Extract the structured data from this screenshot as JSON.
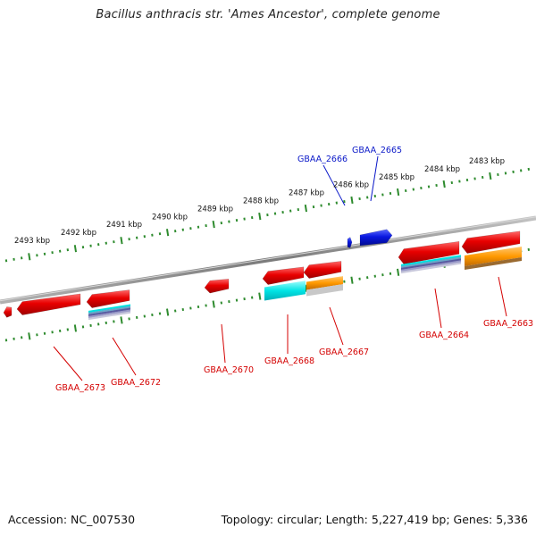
{
  "title": "Bacillus anthracis str. 'Ames Ancestor', complete genome",
  "footer": {
    "accession": "Accession: NC_007530",
    "summary": "Topology: circular; Length: 5,227,419 bp; Genes: 5,336"
  },
  "colors": {
    "backbone": "#808080",
    "tick_ring": "#2e8b2e",
    "forward_gene": "#0a18e0",
    "reverse_gene": "#e00000",
    "cds_cyan": "#00e0e0",
    "cds_orange": "#ff9900",
    "label_red": "#d40000",
    "label_blue": "#0a18c8"
  },
  "scale_labels": [
    "2493 kbp",
    "2492 kbp",
    "2491 kbp",
    "2490 kbp",
    "2489 kbp",
    "2488 kbp",
    "2487 kbp",
    "2486 kbp",
    "2485 kbp",
    "2484 kbp",
    "2483 kbp"
  ],
  "genes_forward": [
    "GBAA_2666",
    "GBAA_2665"
  ],
  "genes_reverse": [
    "GBAA_2673",
    "GBAA_2672",
    "GBAA_2670",
    "GBAA_2668",
    "GBAA_2667",
    "GBAA_2664",
    "GBAA_2663"
  ]
}
